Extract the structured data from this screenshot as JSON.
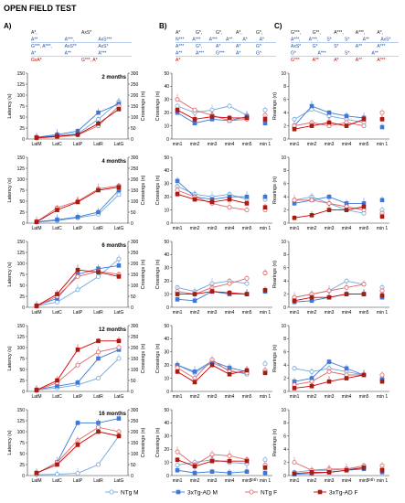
{
  "figure": {
    "title": "OPEN FIELD TEST",
    "panel_labels": [
      "A)",
      "B)",
      "C)"
    ]
  },
  "legend": [
    {
      "label": "NTg M",
      "color": "#6fa8dc",
      "fill": "#ffffff",
      "marker": "circle"
    },
    {
      "label": "3xTg-AD M",
      "color": "#3c78d8",
      "fill": "#3c78d8",
      "marker": "square"
    },
    {
      "label": "NTg F",
      "color": "#e06666",
      "fill": "#ffffff",
      "marker": "circle"
    },
    {
      "label": "3xTg-AD F",
      "color": "#cc0000",
      "fill": "#8b2b1a",
      "marker": "square"
    }
  ],
  "stats": {
    "A": {
      "row1": [
        "A*,",
        "AxS*"
      ],
      "row2": [
        "A**",
        "A***,",
        "AxS***"
      ],
      "row3": [
        "G***, A***,",
        "AxS**",
        "AxS*"
      ],
      "row4": [
        "A*",
        "A**",
        "A***"
      ],
      "row5": [
        "GxA*",
        "G***, A*"
      ]
    },
    "B": {
      "row1": [
        "A*",
        "G*,",
        "G*,",
        "A*,",
        "G*,"
      ],
      "row2": [
        "N***",
        "A***",
        "A***",
        "A**",
        "A*",
        "A*"
      ],
      "row3": [
        "A***",
        "G*,",
        "A*",
        "A*",
        "G*"
      ],
      "row4": [
        "A**",
        "A***",
        "G***",
        "A*",
        "G*"
      ],
      "row5": [
        "A*"
      ]
    },
    "C": {
      "row1": [
        "G***,",
        "G**,",
        "A***,",
        "A***,",
        "A*,"
      ],
      "row2": [
        "A***,",
        "A***,",
        "S*",
        "S*",
        "A**",
        "AxS*"
      ],
      "row3": [
        "AxS*",
        "G*",
        "S*",
        "A**",
        "A***"
      ],
      "row4": [
        "G*",
        "A***",
        "S*",
        "A**"
      ],
      "row5": [
        "G***",
        "A**",
        "A*",
        "A**",
        "A***"
      ]
    }
  },
  "chart_data": [
    {
      "panel": "A",
      "type": "line",
      "ylabel": "Latency (s)",
      "y2label": "Crossings (n)",
      "categories": [
        "LatM",
        "LatC",
        "LatP",
        "LatR",
        "LatG"
      ],
      "ylim": [
        0,
        150
      ],
      "y2lim": [
        0,
        300
      ],
      "ticks": [
        0,
        25,
        50,
        75,
        100,
        125,
        150
      ],
      "ticks2": [
        0,
        50,
        100,
        150,
        200,
        250,
        300
      ],
      "rows": [
        {
          "label": "2 months",
          "series": [
            {
              "name": "NTg M",
              "values": [
                3,
                8,
                12,
                45,
                85
              ]
            },
            {
              "name": "3xTg-AD M",
              "values": [
                4,
                10,
                18,
                60,
                80
              ]
            },
            {
              "name": "NTg F",
              "values": [
                2,
                5,
                9,
                30,
                75
              ]
            },
            {
              "name": "3xTg-AD F",
              "values": [
                3,
                6,
                10,
                35,
                68
              ]
            }
          ]
        },
        {
          "label": "4 months",
          "series": [
            {
              "name": "NTg M",
              "values": [
                2,
                6,
                12,
                20,
                65
              ]
            },
            {
              "name": "3xTg-AD M",
              "values": [
                3,
                8,
                14,
                25,
                75
              ]
            },
            {
              "name": "NTg F",
              "values": [
                3,
                35,
                50,
                78,
                85
              ]
            },
            {
              "name": "3xTg-AD F",
              "values": [
                3,
                30,
                48,
                75,
                82
              ]
            }
          ]
        },
        {
          "label": "6 months",
          "series": [
            {
              "name": "NTg M",
              "values": [
                3,
                12,
                40,
                70,
                110
              ]
            },
            {
              "name": "3xTg-AD M",
              "values": [
                4,
                20,
                75,
                88,
                95
              ]
            },
            {
              "name": "NTg F",
              "values": [
                2,
                25,
                70,
                82,
                75
              ]
            },
            {
              "name": "3xTg-AD F",
              "values": [
                3,
                30,
                85,
                80,
                70
              ]
            }
          ]
        },
        {
          "label": "12 months",
          "series": [
            {
              "name": "NTg M",
              "values": [
                3,
                8,
                15,
                30,
                75
              ]
            },
            {
              "name": "3xTg-AD M",
              "values": [
                4,
                12,
                20,
                75,
                95
              ]
            },
            {
              "name": "NTg F",
              "values": [
                2,
                20,
                60,
                90,
                100
              ]
            },
            {
              "name": "3xTg-AD F",
              "values": [
                3,
                25,
                95,
                115,
                115
              ]
            }
          ]
        },
        {
          "label": "16 months",
          "series": [
            {
              "name": "NTg M",
              "values": [
                2,
                3,
                5,
                25,
                90
              ]
            },
            {
              "name": "3xTg-AD M",
              "values": [
                5,
                30,
                120,
                120,
                130
              ]
            },
            {
              "name": "NTg F",
              "values": [
                4,
                30,
                80,
                110,
                100
              ]
            },
            {
              "name": "3xTg-AD F",
              "values": [
                6,
                25,
                70,
                100,
                90
              ]
            }
          ]
        }
      ]
    },
    {
      "panel": "B",
      "type": "line",
      "ylabel": "Crossings (n)",
      "categories": [
        "min1",
        "min2",
        "min3",
        "min4",
        "min5"
      ],
      "extra_category": "min 1",
      "extra_note": "24h",
      "ylim": [
        0,
        50
      ],
      "ticks": [
        0,
        10,
        20,
        30,
        40,
        50
      ],
      "rows": [
        {
          "label": "2 months",
          "series": [
            {
              "name": "NTg M",
              "values": [
                25,
                20,
                22,
                25,
                18
              ],
              "extra": 22
            },
            {
              "name": "3xTg-AD M",
              "values": [
                20,
                12,
                15,
                14,
                17
              ],
              "extra": 12
            },
            {
              "name": "NTg F",
              "values": [
                30,
                22,
                18,
                14,
                15
              ],
              "extra": 18
            },
            {
              "name": "3xTg-AD F",
              "values": [
                22,
                15,
                17,
                16,
                16
              ],
              "extra": 15
            }
          ]
        },
        {
          "label": "4 months",
          "series": [
            {
              "name": "NTg M",
              "values": [
                28,
                22,
                20,
                22,
                18
              ],
              "extra": 18
            },
            {
              "name": "3xTg-AD M",
              "values": [
                32,
                20,
                18,
                20,
                20
              ],
              "extra": 20
            },
            {
              "name": "NTg F",
              "values": [
                25,
                20,
                15,
                12,
                10
              ],
              "extra": 10
            },
            {
              "name": "3xTg-AD F",
              "values": [
                22,
                18,
                16,
                18,
                15
              ],
              "extra": 12
            }
          ]
        },
        {
          "label": "6 months",
          "series": [
            {
              "name": "NTg M",
              "values": [
                15,
                12,
                18,
                20,
                18
              ],
              "extra": 26
            },
            {
              "name": "3xTg-AD M",
              "values": [
                6,
                5,
                12,
                10,
                10
              ],
              "extra": 12
            },
            {
              "name": "NTg F",
              "values": [
                12,
                10,
                15,
                18,
                22
              ],
              "extra": 26
            },
            {
              "name": "3xTg-AD F",
              "values": [
                10,
                10,
                12,
                11,
                10
              ],
              "extra": 13
            }
          ]
        },
        {
          "label": "12 months",
          "series": [
            {
              "name": "NTg M",
              "values": [
                20,
                14,
                22,
                16,
                13
              ],
              "extra": 21
            },
            {
              "name": "3xTg-AD M",
              "values": [
                20,
                15,
                23,
                18,
                15
              ],
              "extra": 15
            },
            {
              "name": "NTg F",
              "values": [
                18,
                10,
                24,
                15,
                14
              ],
              "extra": 16
            },
            {
              "name": "3xTg-AD F",
              "values": [
                15,
                7,
                20,
                13,
                16
              ],
              "extra": 14
            }
          ]
        },
        {
          "label": "16 months",
          "series": [
            {
              "name": "NTg M",
              "values": [
                8,
                10,
                12,
                10,
                9
              ],
              "extra": 12
            },
            {
              "name": "3xTg-AD M",
              "values": [
                4,
                2,
                3,
                2,
                3
              ],
              "extra": 2
            },
            {
              "name": "NTg F",
              "values": [
                18,
                8,
                16,
                15,
                12
              ],
              "extra": 8
            },
            {
              "name": "3xTg-AD F",
              "values": [
                12,
                7,
                11,
                11,
                11
              ],
              "extra": 6
            }
          ]
        }
      ]
    },
    {
      "panel": "C",
      "type": "line",
      "ylabel": "Rearings (n)",
      "categories": [
        "min1",
        "min2",
        "min3",
        "min4",
        "min5"
      ],
      "extra_category": "min 1",
      "extra_note": "24h",
      "ylim": [
        0,
        10
      ],
      "ticks": [
        0,
        2,
        4,
        6,
        8,
        10
      ],
      "rows": [
        {
          "label": "2 months",
          "series": [
            {
              "name": "NTg M",
              "values": [
                3.0,
                4.5,
                3.5,
                3.0,
                2.5
              ],
              "extra": 3.0
            },
            {
              "name": "3xTg-AD M",
              "values": [
                2.0,
                5.0,
                4.0,
                3.5,
                3.2
              ],
              "extra": 1.8
            },
            {
              "name": "NTg F",
              "values": [
                2.0,
                2.5,
                2.0,
                2.5,
                2.0
              ],
              "extra": 4.0
            },
            {
              "name": "3xTg-AD F",
              "values": [
                1.5,
                2.0,
                2.5,
                2.0,
                3.0
              ],
              "extra": 3.0
            }
          ]
        },
        {
          "label": "4 months",
          "series": [
            {
              "name": "NTg M",
              "values": [
                3.5,
                4.0,
                3.0,
                2.0,
                1.5
              ],
              "extra": 2.0
            },
            {
              "name": "3xTg-AD M",
              "values": [
                3.0,
                3.5,
                4.0,
                3.0,
                3.0
              ],
              "extra": 3.5
            },
            {
              "name": "NTg F",
              "values": [
                3.5,
                3.5,
                3.0,
                2.5,
                2.0
              ],
              "extra": 1.5
            },
            {
              "name": "3xTg-AD F",
              "values": [
                0.8,
                1.2,
                2.0,
                2.0,
                2.5
              ],
              "extra": 1.0
            }
          ]
        },
        {
          "label": "6 months",
          "series": [
            {
              "name": "NTg M",
              "values": [
                1.5,
                2.0,
                2.5,
                4.0,
                3.5
              ],
              "extra": 3.0
            },
            {
              "name": "3xTg-AD M",
              "values": [
                0.8,
                1.0,
                1.5,
                2.0,
                2.0
              ],
              "extra": 1.5
            },
            {
              "name": "NTg F",
              "values": [
                1.5,
                2.0,
                2.5,
                3.0,
                3.5
              ],
              "extra": 2.5
            },
            {
              "name": "3xTg-AD F",
              "values": [
                1.0,
                1.5,
                1.5,
                2.0,
                2.0
              ],
              "extra": 1.8
            }
          ]
        },
        {
          "label": "12 months",
          "series": [
            {
              "name": "NTg M",
              "values": [
                3.5,
                3.0,
                3.5,
                3.0,
                2.5
              ],
              "extra": 2.0
            },
            {
              "name": "3xTg-AD M",
              "values": [
                1.5,
                2.0,
                4.5,
                3.5,
                2.5
              ],
              "extra": 1.8
            },
            {
              "name": "NTg F",
              "values": [
                1.0,
                1.5,
                3.0,
                2.5,
                2.5
              ],
              "extra": 2.5
            },
            {
              "name": "3xTg-AD F",
              "values": [
                0.5,
                0.8,
                1.5,
                2.0,
                2.5
              ],
              "extra": 1.5
            }
          ]
        },
        {
          "label": "16 months",
          "series": [
            {
              "name": "NTg M",
              "values": [
                0.5,
                0.8,
                0.8,
                1.0,
                1.2
              ],
              "extra": 1.0
            },
            {
              "name": "3xTg-AD M",
              "values": [
                0.2,
                0.3,
                0.5,
                0.8,
                1.0
              ],
              "extra": 0.5
            },
            {
              "name": "NTg F",
              "values": [
                2.0,
                0.8,
                1.0,
                1.0,
                1.5
              ],
              "extra": 1.5
            },
            {
              "name": "3xTg-AD F",
              "values": [
                0.3,
                0.5,
                0.5,
                0.8,
                1.2
              ],
              "extra": 0.8
            }
          ]
        }
      ]
    }
  ]
}
